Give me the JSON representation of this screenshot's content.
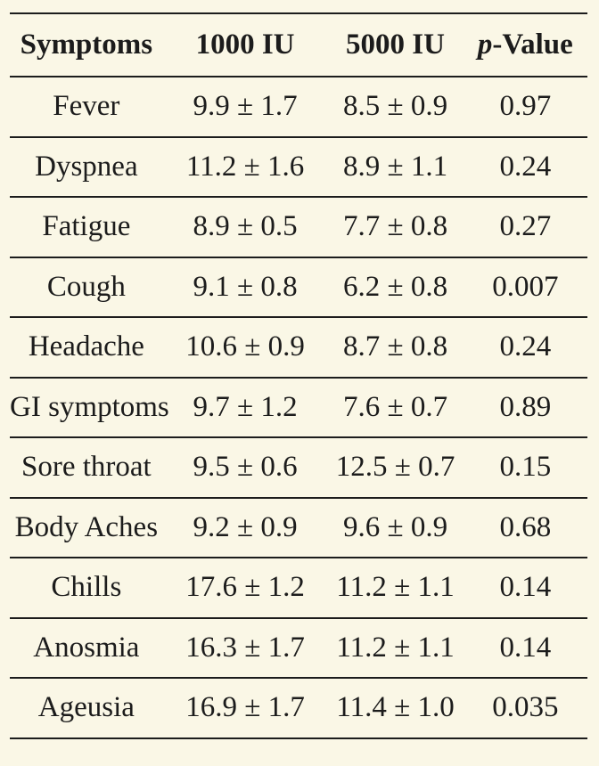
{
  "colors": {
    "background": "#FAF7E6",
    "rule": "#1C1C1C",
    "text": "#1C1C1C"
  },
  "table": {
    "header": {
      "symptoms": "Symptoms",
      "iu1000": "1000 IU",
      "iu5000": "5000 IU",
      "p_italic": "p",
      "p_rest": "-Value"
    },
    "rows": [
      {
        "symptom": "Fever",
        "iu1000": "9.9 ± 1.7",
        "iu5000": "8.5 ± 0.9",
        "p": "0.97"
      },
      {
        "symptom": "Dyspnea",
        "iu1000": "11.2 ± 1.6",
        "iu5000": "8.9 ± 1.1",
        "p": "0.24"
      },
      {
        "symptom": "Fatigue",
        "iu1000": "8.9 ± 0.5",
        "iu5000": "7.7 ± 0.8",
        "p": "0.27"
      },
      {
        "symptom": "Cough",
        "iu1000": "9.1 ± 0.8",
        "iu5000": "6.2 ± 0.8",
        "p": "0.007"
      },
      {
        "symptom": "Headache",
        "iu1000": "10.6 ± 0.9",
        "iu5000": "8.7 ± 0.8",
        "p": "0.24"
      },
      {
        "symptom": "GI symptoms",
        "iu1000": "9.7 ± 1.2",
        "iu5000": "7.6 ± 0.7",
        "p": "0.89"
      },
      {
        "symptom": "Sore throat",
        "iu1000": "9.5 ± 0.6",
        "iu5000": "12.5 ± 0.7",
        "p": "0.15"
      },
      {
        "symptom": "Body Aches",
        "iu1000": "9.2 ± 0.9",
        "iu5000": "9.6 ± 0.9",
        "p": "0.68"
      },
      {
        "symptom": "Chills",
        "iu1000": "17.6 ± 1.2",
        "iu5000": "11.2 ± 1.1",
        "p": "0.14"
      },
      {
        "symptom": "Anosmia",
        "iu1000": "16.3 ± 1.7",
        "iu5000": "11.2 ± 1.1",
        "p": "0.14"
      },
      {
        "symptom": "Ageusia",
        "iu1000": "16.9 ± 1.7",
        "iu5000": "11.4 ± 1.0",
        "p": "0.035"
      }
    ]
  }
}
